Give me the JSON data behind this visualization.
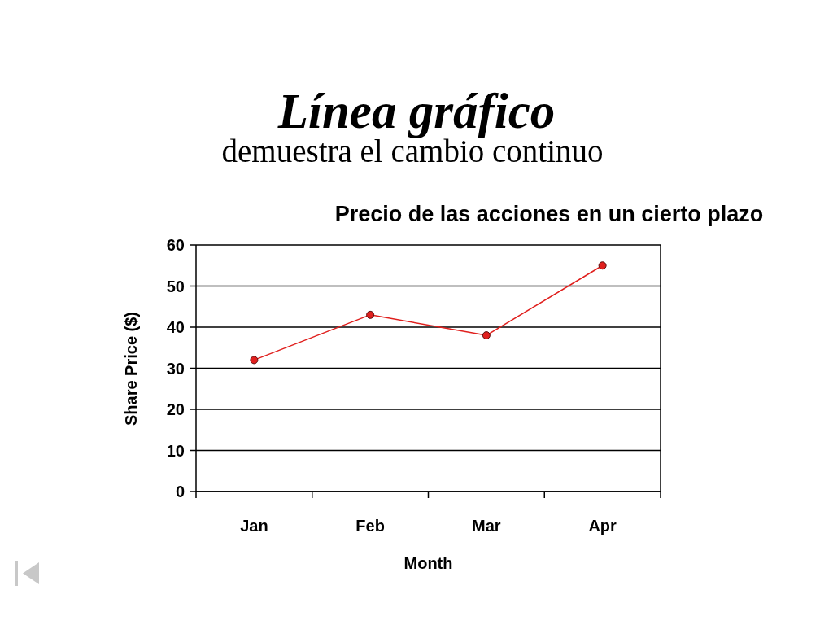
{
  "chart_data": {
    "type": "line",
    "title": "Línea gráfico",
    "subtitle": "demuestra el cambio continuo",
    "annotations": [
      "Precio de las acciones en un cierto plazo"
    ],
    "xlabel": "Month",
    "ylabel": "Share Price ($)",
    "categories": [
      "Jan",
      "Feb",
      "Mar",
      "Apr"
    ],
    "series": [
      {
        "color": "#e0201e",
        "values": [
          32,
          43,
          38,
          55
        ]
      }
    ],
    "ylim": [
      0,
      60
    ],
    "yticks": [
      0,
      10,
      20,
      30,
      40,
      50,
      60
    ],
    "grid": "y",
    "marker": "circle"
  }
}
